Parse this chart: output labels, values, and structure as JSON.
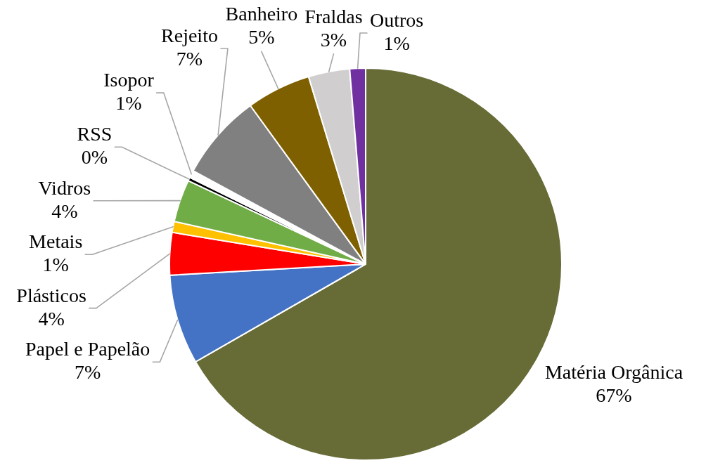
{
  "chart_data": {
    "type": "pie",
    "categories": [
      "Matéria Orgânica",
      "Papel e Papelão",
      "Plásticos",
      "Metais",
      "Vidros",
      "RSS",
      "Isopor",
      "Rejeito",
      "Banheiro",
      "Fraldas",
      "Outros"
    ],
    "values": [
      66.7,
      7.4,
      3.5,
      0.9,
      3.5,
      0.3,
      0.6,
      7.1,
      5.3,
      3.4,
      1.3
    ],
    "value_labels": [
      "67%",
      "7%",
      "4%",
      "1%",
      "4%",
      "0%",
      "1%",
      "7%",
      "5%",
      "3%",
      "1%"
    ],
    "colors": [
      "#676b35",
      "#4472c4",
      "#ff0000",
      "#ffc000",
      "#70ad47",
      "#000000",
      "#ffffff",
      "#808080",
      "#7f6000",
      "#d0cece",
      "#7030a0"
    ]
  }
}
